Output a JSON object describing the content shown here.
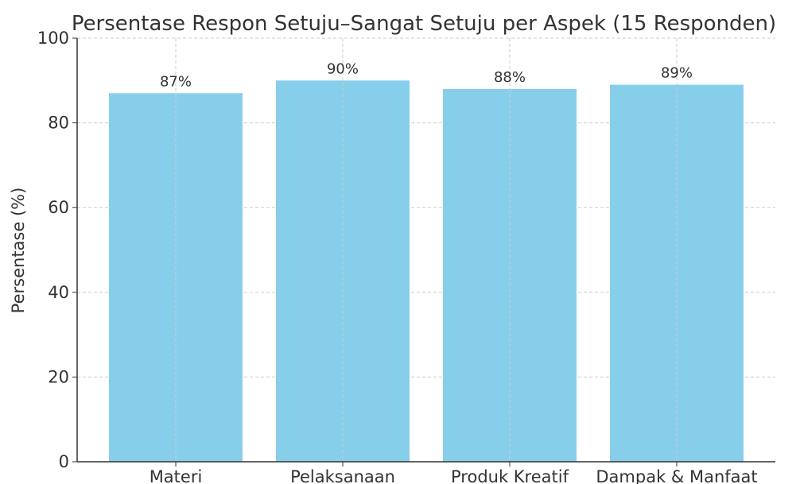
{
  "chart_data": {
    "type": "bar",
    "title": "Persentase Respon Setuju–Sangat Setuju per Aspek (15 Responden)",
    "y_label": "Persentase (%)",
    "categories": [
      "Materi",
      "Pelaksanaan",
      "Produk Kreatif",
      "Dampak & Manfaat"
    ],
    "values": [
      87,
      90,
      88,
      89
    ],
    "value_labels": [
      "87%",
      "90%",
      "88%",
      "89%"
    ],
    "color": "#87ceeb",
    "ylim": [
      0,
      100
    ],
    "yticks": [
      0,
      20,
      40,
      60,
      80,
      100
    ],
    "grid": true
  }
}
